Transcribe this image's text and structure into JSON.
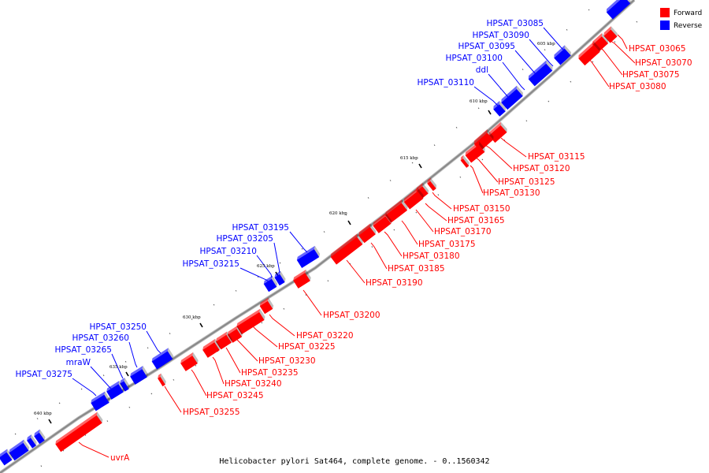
{
  "caption": "Helicobacter pylori Sat464, complete genome. - 0..1560342",
  "legend": {
    "forward": {
      "label": "Forward",
      "color": "#ff0000"
    },
    "reverse": {
      "label": "Reverse",
      "color": "#0000ff"
    }
  },
  "colors": {
    "forward": "#ff0000",
    "reverse": "#0000ff",
    "backbone": "#888888"
  },
  "scale_ticks": [
    "605 kbp",
    "610 kbp",
    "615 kbp",
    "620 kbp",
    "625 kbp",
    "630 kbp",
    "635 kbp",
    "640 kbp"
  ],
  "forward_genes": [
    "HPSAT_03065",
    "HPSAT_03070",
    "HPSAT_03075",
    "HPSAT_03080",
    "HPSAT_03115",
    "HPSAT_03120",
    "HPSAT_03125",
    "HPSAT_03130",
    "HPSAT_03150",
    "HPSAT_03165",
    "HPSAT_03170",
    "HPSAT_03175",
    "HPSAT_03180",
    "HPSAT_03185",
    "HPSAT_03190",
    "HPSAT_03200",
    "HPSAT_03220",
    "HPSAT_03225",
    "HPSAT_03230",
    "HPSAT_03235",
    "HPSAT_03240",
    "HPSAT_03245",
    "HPSAT_03255",
    "uvrA"
  ],
  "reverse_genes": [
    "HPSAT_03085",
    "HPSAT_03090",
    "HPSAT_03095",
    "HPSAT_03100",
    "ddl",
    "HPSAT_03110",
    "HPSAT_03195",
    "HPSAT_03205",
    "HPSAT_03210",
    "HPSAT_03215",
    "HPSAT_03250",
    "HPSAT_03260",
    "HPSAT_03265",
    "mraW",
    "HPSAT_03275"
  ]
}
